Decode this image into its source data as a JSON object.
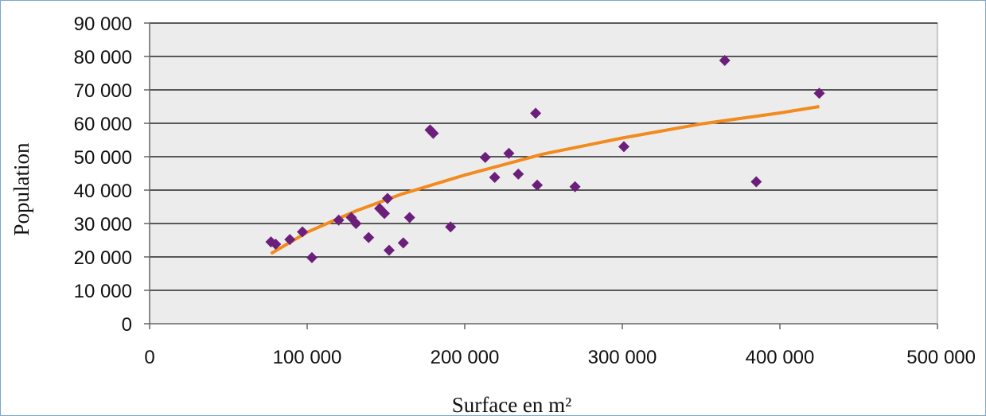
{
  "chart_data": {
    "type": "scatter",
    "title": "",
    "xlabel": "Surface en m²",
    "ylabel": "Population",
    "xlim": [
      0,
      500000
    ],
    "ylim": [
      0,
      90000
    ],
    "x_ticks": [
      0,
      100000,
      200000,
      300000,
      400000,
      500000
    ],
    "y_ticks": [
      0,
      10000,
      20000,
      30000,
      40000,
      50000,
      60000,
      70000,
      80000,
      90000
    ],
    "x_tick_labels": [
      "0",
      "100 000",
      "200 000",
      "300 000",
      "400 000",
      "500 000"
    ],
    "y_tick_labels": [
      "0",
      "10 000",
      "20 000",
      "30 000",
      "40 000",
      "50 000",
      "60 000",
      "70 000",
      "80 000",
      "90 000"
    ],
    "grid": "horizontal",
    "legend": "none",
    "colors": {
      "plot_background": "#ececec",
      "points": "#6b1f7a",
      "trend": "#f28a1e",
      "grid": "#000000"
    },
    "series": [
      {
        "points": [
          [
            77000,
            24500
          ],
          [
            80000,
            23800
          ],
          [
            89000,
            25200
          ],
          [
            97000,
            27500
          ],
          [
            103000,
            19800
          ],
          [
            120000,
            31000
          ],
          [
            128000,
            31800
          ],
          [
            131000,
            30000
          ],
          [
            139000,
            25800
          ],
          [
            146000,
            34500
          ],
          [
            149000,
            33000
          ],
          [
            151000,
            37500
          ],
          [
            152000,
            22000
          ],
          [
            161000,
            24200
          ],
          [
            165000,
            31800
          ],
          [
            178000,
            58000
          ],
          [
            180000,
            57000
          ],
          [
            191000,
            29000
          ],
          [
            213000,
            49800
          ],
          [
            219000,
            43800
          ],
          [
            228000,
            51000
          ],
          [
            234000,
            44800
          ],
          [
            245000,
            63000
          ],
          [
            246000,
            41500
          ],
          [
            270000,
            41000
          ],
          [
            301000,
            53000
          ],
          [
            365000,
            78800
          ],
          [
            385000,
            42500
          ],
          [
            425000,
            69000
          ]
        ]
      }
    ],
    "trendline": {
      "points": [
        [
          77000,
          21000
        ],
        [
          100000,
          27400
        ],
        [
          130000,
          33600
        ],
        [
          160000,
          38800
        ],
        [
          200000,
          44500
        ],
        [
          250000,
          50800
        ],
        [
          300000,
          55600
        ],
        [
          350000,
          59800
        ],
        [
          400000,
          63100
        ],
        [
          425000,
          65000
        ]
      ]
    }
  }
}
